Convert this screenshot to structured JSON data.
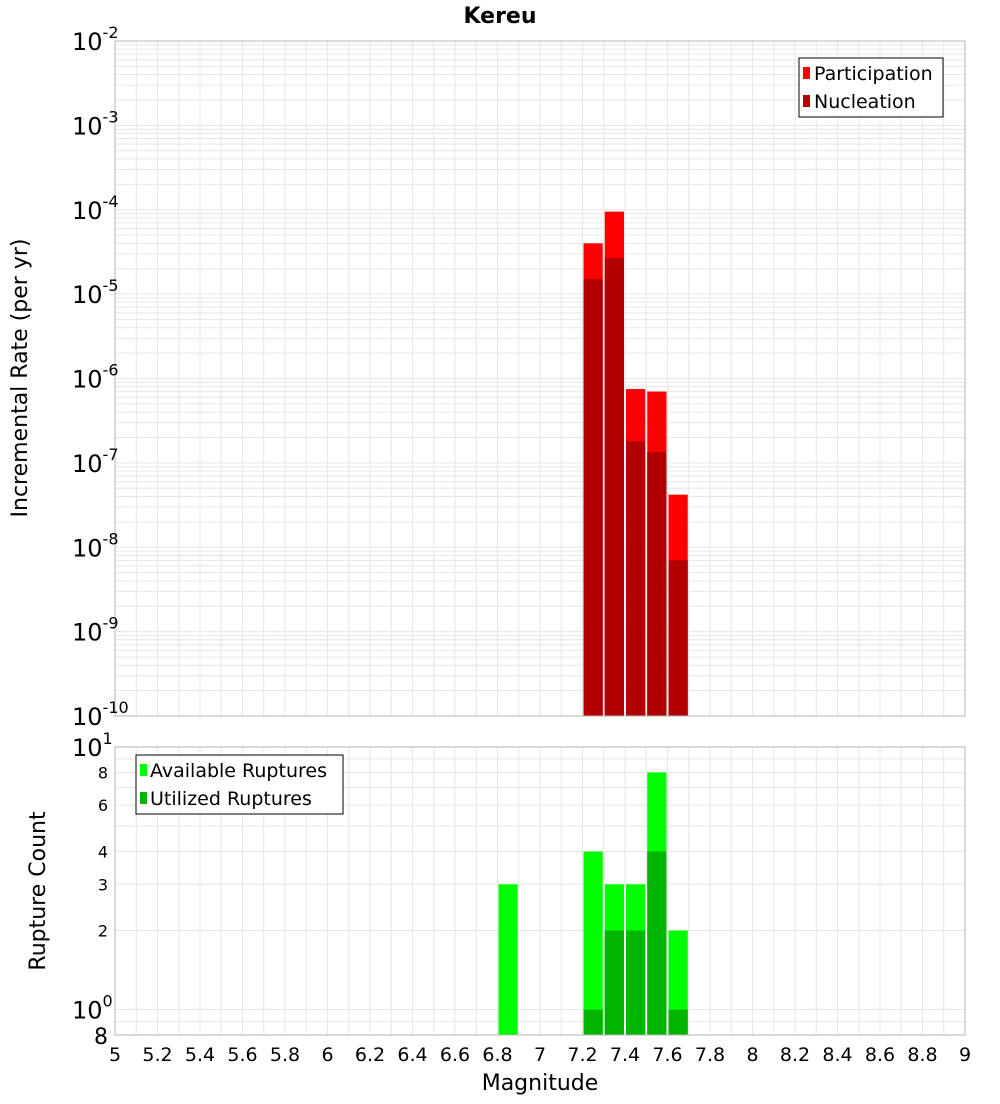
{
  "title": "Kereu",
  "xlabel": "Magnitude",
  "x_ticks": [
    "5",
    "5.2",
    "5.4",
    "5.6",
    "5.8",
    "6",
    "6.2",
    "6.4",
    "6.6",
    "6.8",
    "7",
    "7.2",
    "7.4",
    "7.6",
    "7.8",
    "8",
    "8.2",
    "8.4",
    "8.6",
    "8.8",
    "9"
  ],
  "colors": {
    "participation": "#ff0000",
    "nucleation": "#b20000",
    "available": "#00ff00",
    "utilized": "#00b400",
    "grid": "#e6e6e6",
    "frame": "#b4b4b4"
  },
  "chart_data": [
    {
      "type": "bar",
      "panel": "top",
      "ylabel": "Incremental Rate (per yr)",
      "yscale": "log",
      "ylim": [
        1e-10,
        0.01
      ],
      "xlim": [
        5,
        9
      ],
      "bin_width": 0.1,
      "y_tick_exponents": [
        "-2",
        "-3",
        "-4",
        "-5",
        "-6",
        "-7",
        "-8",
        "-9",
        "-10"
      ],
      "y_tick_base": "10",
      "legend": "top-right",
      "x": [
        7.25,
        7.35,
        7.45,
        7.55,
        7.65
      ],
      "series": [
        {
          "name": "Participation",
          "values": [
            4e-05,
            9.5e-05,
            7.5e-07,
            7e-07,
            4.2e-08
          ]
        },
        {
          "name": "Nucleation",
          "values": [
            1.5e-05,
            2.7e-05,
            1.8e-07,
            1.35e-07,
            7e-09
          ]
        }
      ]
    },
    {
      "type": "bar",
      "panel": "bottom",
      "ylabel": "Rupture Count",
      "yscale": "log",
      "ylim": [
        0.8,
        10
      ],
      "xlim": [
        5,
        9
      ],
      "bin_width": 0.1,
      "y_ticks": [
        {
          "value": 10,
          "base": "10",
          "exp": "1"
        },
        {
          "value": 8,
          "label": "8"
        },
        {
          "value": 6,
          "label": "6"
        },
        {
          "value": 4,
          "label": "4"
        },
        {
          "value": 3,
          "label": "3"
        },
        {
          "value": 2,
          "label": "2"
        },
        {
          "value": 1,
          "base": "10",
          "exp": "0"
        },
        {
          "value": 0.8,
          "label": "8"
        }
      ],
      "legend": "top-left",
      "x": [
        6.85,
        7.25,
        7.35,
        7.45,
        7.55,
        7.65
      ],
      "series": [
        {
          "name": "Available Ruptures",
          "values": [
            3,
            4,
            3,
            3,
            8,
            2
          ]
        },
        {
          "name": "Utilized Ruptures",
          "values": [
            0,
            1,
            2,
            2,
            4,
            1
          ]
        }
      ]
    }
  ]
}
